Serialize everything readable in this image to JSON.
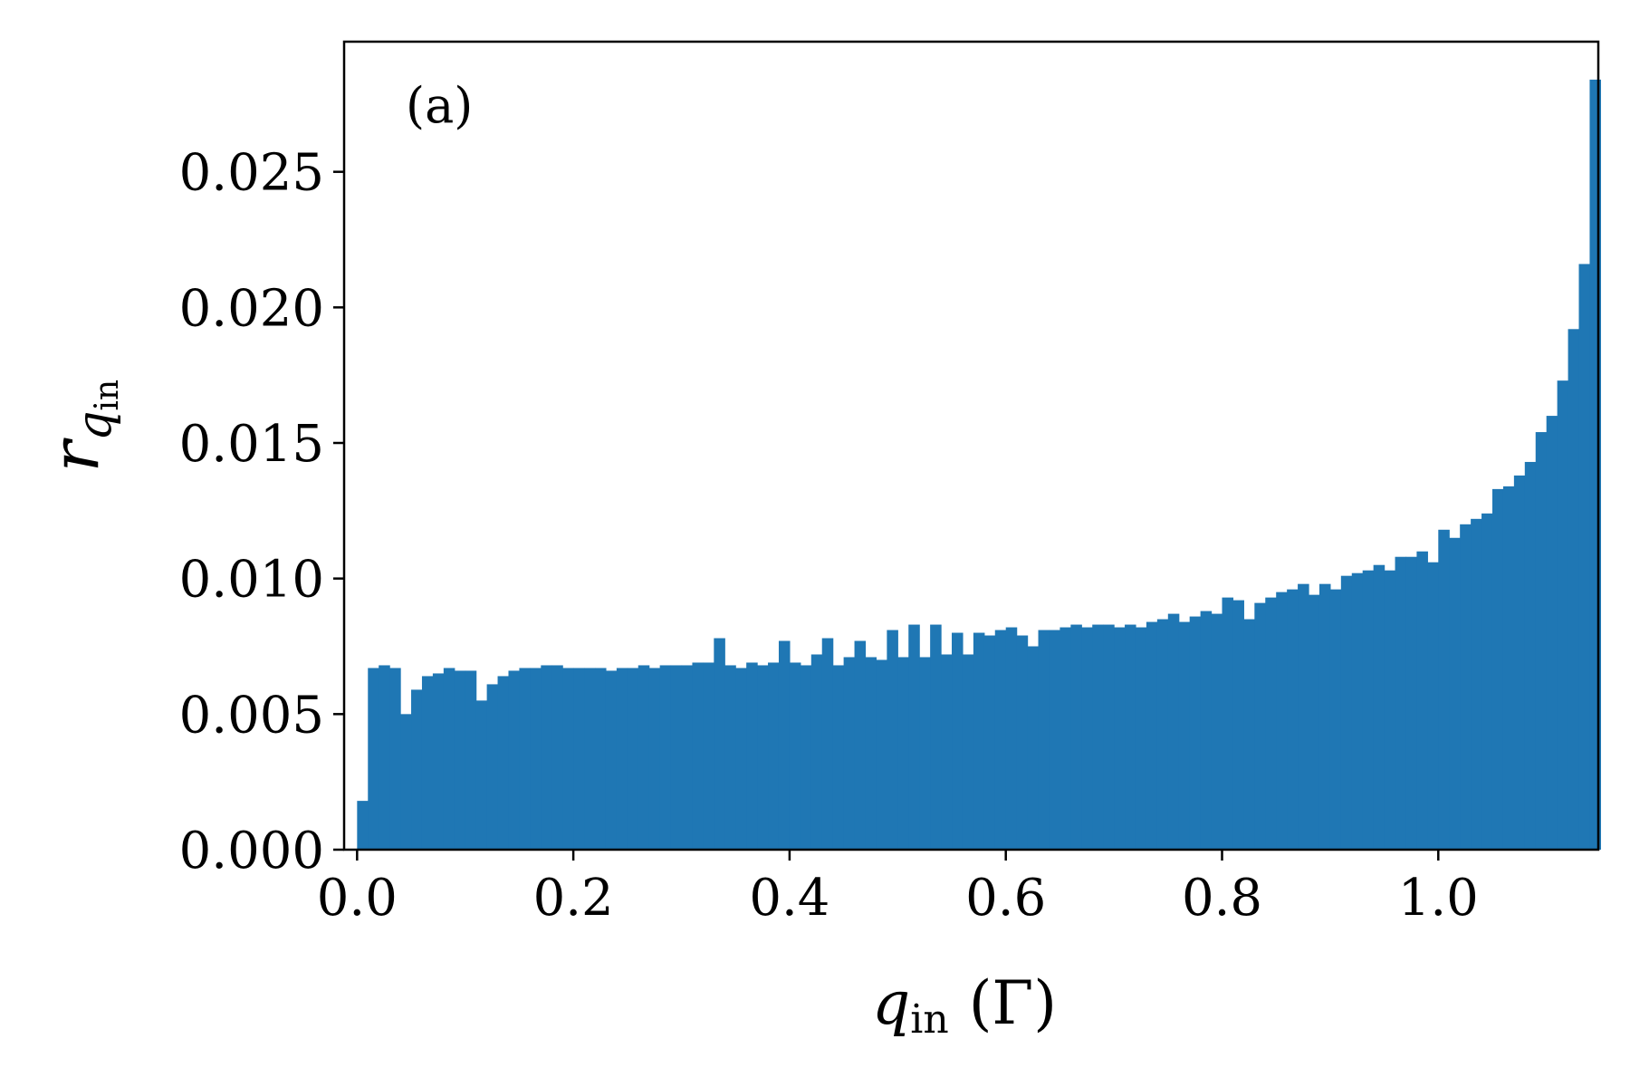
{
  "chart_data": {
    "type": "bar",
    "panel_label": "(a)",
    "xlabel": {
      "base": "q",
      "sub": "in",
      "unit": "(Γ)"
    },
    "ylabel": {
      "base": "r",
      "sub_base": "q",
      "sub_sub": "in"
    },
    "xlim": [
      -0.012,
      1.148
    ],
    "ylim": [
      0,
      0.0298
    ],
    "bar_color": "#1f77b4",
    "grid": false,
    "xticks": [
      {
        "value": 0.0,
        "label": "0.0"
      },
      {
        "value": 0.2,
        "label": "0.2"
      },
      {
        "value": 0.4,
        "label": "0.4"
      },
      {
        "value": 0.6,
        "label": "0.6"
      },
      {
        "value": 0.8,
        "label": "0.8"
      },
      {
        "value": 1.0,
        "label": "1.0"
      }
    ],
    "yticks": [
      {
        "value": 0.0,
        "label": "0.000"
      },
      {
        "value": 0.005,
        "label": "0.005"
      },
      {
        "value": 0.01,
        "label": "0.010"
      },
      {
        "value": 0.015,
        "label": "0.015"
      },
      {
        "value": 0.02,
        "label": "0.020"
      },
      {
        "value": 0.025,
        "label": "0.025"
      }
    ],
    "bin_start": 0.0,
    "bin_width": 0.01,
    "values": [
      0.0018,
      0.0067,
      0.0068,
      0.0067,
      0.005,
      0.0059,
      0.0064,
      0.0065,
      0.0067,
      0.0066,
      0.0066,
      0.0055,
      0.0061,
      0.0064,
      0.0066,
      0.0067,
      0.0067,
      0.0068,
      0.0068,
      0.0067,
      0.0067,
      0.0067,
      0.0067,
      0.0066,
      0.0067,
      0.0067,
      0.0068,
      0.0067,
      0.0068,
      0.0068,
      0.0068,
      0.0069,
      0.0069,
      0.0078,
      0.0068,
      0.0067,
      0.0069,
      0.0068,
      0.0069,
      0.0077,
      0.0069,
      0.0068,
      0.0072,
      0.0078,
      0.0068,
      0.0071,
      0.0077,
      0.0071,
      0.007,
      0.0081,
      0.0071,
      0.0083,
      0.0071,
      0.0083,
      0.0072,
      0.008,
      0.0072,
      0.008,
      0.0079,
      0.0081,
      0.0082,
      0.0079,
      0.0075,
      0.0081,
      0.0081,
      0.0082,
      0.0083,
      0.0082,
      0.0083,
      0.0083,
      0.0082,
      0.0083,
      0.0082,
      0.0084,
      0.0085,
      0.0087,
      0.0084,
      0.0086,
      0.0088,
      0.0087,
      0.0093,
      0.0092,
      0.0085,
      0.0091,
      0.0093,
      0.0095,
      0.0096,
      0.0098,
      0.0094,
      0.0098,
      0.0096,
      0.0101,
      0.0102,
      0.0103,
      0.0105,
      0.0103,
      0.0108,
      0.0108,
      0.011,
      0.0106,
      0.0118,
      0.0115,
      0.012,
      0.0122,
      0.0124,
      0.0133,
      0.0134,
      0.0138,
      0.0143,
      0.0154,
      0.016,
      0.0173,
      0.0192,
      0.0216,
      0.0284
    ]
  }
}
